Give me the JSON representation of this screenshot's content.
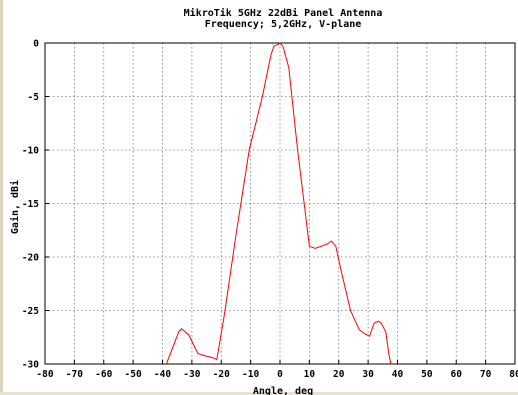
{
  "chart_data": {
    "type": "line",
    "title": "MikroTik 5GHz 22dBi Panel Antenna",
    "subtitle": "Frequency; 5,2GHz, V-plane",
    "xlabel": "Angle, deg",
    "ylabel": "Gain, dBi",
    "xlim": [
      -80,
      80
    ],
    "ylim": [
      -30,
      0
    ],
    "xticks": [
      -80,
      -70,
      -60,
      -50,
      -40,
      -30,
      -20,
      -10,
      0,
      10,
      20,
      30,
      40,
      50,
      60,
      70,
      80
    ],
    "yticks": [
      0,
      -5,
      -10,
      -15,
      -20,
      -25,
      -30
    ],
    "grid": true,
    "series_color": "#ff0000",
    "x": [
      -40,
      -38,
      -34.5,
      -33.5,
      -31,
      -28,
      -26,
      -23,
      -21.5,
      -19,
      -15,
      -10.5,
      -6,
      -3,
      -2,
      -0.5,
      0,
      1,
      3,
      6,
      10,
      12,
      16,
      17.5,
      19,
      21,
      24,
      27,
      29,
      30.5,
      32,
      33.5,
      34.5,
      36,
      37,
      38.5
    ],
    "y": [
      -31,
      -29.5,
      -27,
      -26.7,
      -27.3,
      -29,
      -29.2,
      -29.4,
      -29.6,
      -25.5,
      -18,
      -10,
      -5,
      -1,
      -0.3,
      -0.1,
      0,
      -0.3,
      -2.3,
      -10,
      -19,
      -19.2,
      -18.8,
      -18.5,
      -19,
      -21.5,
      -25,
      -26.8,
      -27.2,
      -27.4,
      -26.2,
      -26,
      -26.2,
      -27,
      -29,
      -31
    ]
  }
}
